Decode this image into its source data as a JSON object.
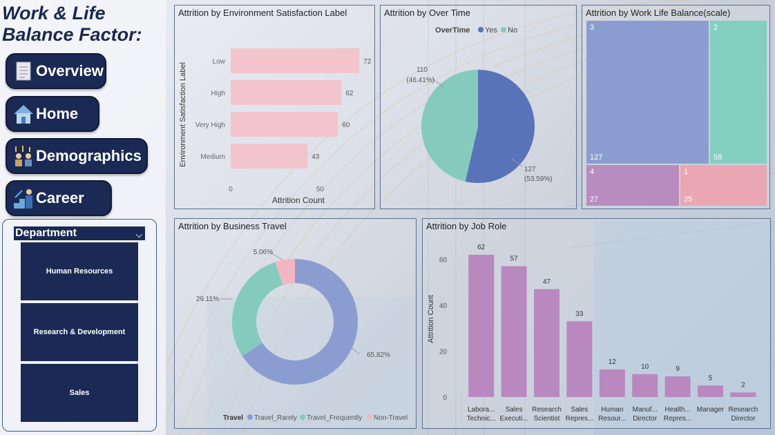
{
  "sidebar": {
    "title_line1": "Work & Life",
    "title_line2": "Balance Factor:",
    "nav": [
      {
        "label": "Overview",
        "icon": "document-icon"
      },
      {
        "label": "Home",
        "icon": "house-icon"
      },
      {
        "label": "Demographics",
        "icon": "people-icon"
      },
      {
        "label": "Career",
        "icon": "career-growth-icon"
      }
    ],
    "slicer": {
      "header": "Department",
      "items": [
        "Human Resources",
        "Research & Development",
        "Sales"
      ]
    }
  },
  "panels": {
    "env": {
      "title": "Attrition by Environment Satisfaction Label"
    },
    "overtime": {
      "title": "Attrition by Over Time"
    },
    "wlb": {
      "title": "Attrition by Work Life Balance(scale)"
    },
    "travel": {
      "title": "Attrition by Business Travel"
    },
    "jobrole": {
      "title": "Attrition by Job Role"
    }
  },
  "chart_data": [
    {
      "id": "env",
      "type": "bar",
      "orientation": "horizontal",
      "title": "Attrition by Environment Satisfaction Label",
      "categories": [
        "Low",
        "High",
        "Very High",
        "Medium"
      ],
      "values": [
        72,
        62,
        60,
        43
      ],
      "xlabel": "Attrition Count",
      "ylabel": "Environment Satisfaction Label",
      "xticks": [
        "0",
        "50"
      ],
      "xlim": [
        0,
        75
      ],
      "color": "#f2c4cc"
    },
    {
      "id": "overtime",
      "type": "pie",
      "title": "Attrition by Over Time",
      "legend_title": "OverTime",
      "labels": [
        "Yes",
        "No"
      ],
      "values": [
        127,
        110
      ],
      "percents": [
        "(53.59%)",
        "(46.41%)"
      ],
      "colors": [
        "#5873b8",
        "#84cbbd"
      ]
    },
    {
      "id": "wlb",
      "type": "treemap",
      "title": "Attrition by Work Life Balance(scale)",
      "labels": [
        "3",
        "2",
        "4",
        "1"
      ],
      "values": [
        127,
        58,
        27,
        25
      ],
      "colors": [
        "#8b9dd0",
        "#84cfc0",
        "#b98cc0",
        "#eaa6b2"
      ]
    },
    {
      "id": "travel",
      "type": "pie",
      "donut": true,
      "title": "Attrition by Business Travel",
      "legend_title": "Travel",
      "labels": [
        "Travel_Rarely",
        "Travel_Frequently",
        "Non-Travel"
      ],
      "values": [
        156,
        69,
        12
      ],
      "percents": [
        "65.82%",
        "29.11%",
        "5.06%"
      ],
      "colors": [
        "#8b9dd0",
        "#84cbbd",
        "#f2b6c2"
      ]
    },
    {
      "id": "jobrole",
      "type": "bar",
      "title": "Attrition by Job Role",
      "categories": [
        [
          "Labora...",
          "Technic..."
        ],
        [
          "Sales",
          "Executi..."
        ],
        [
          "Research",
          "Scientist"
        ],
        [
          "Sales",
          "Repres..."
        ],
        [
          "Human",
          "Resour..."
        ],
        [
          "Manuf...",
          "Director"
        ],
        [
          "Health...",
          "Repres..."
        ],
        [
          "Manager"
        ],
        [
          "Research",
          "Director"
        ]
      ],
      "values": [
        62,
        57,
        47,
        33,
        12,
        10,
        9,
        5,
        2
      ],
      "ylabel": "Attrition Count",
      "yticks": [
        0,
        20,
        40,
        60
      ],
      "ylim": [
        0,
        68
      ],
      "color": "#b988bf"
    }
  ]
}
